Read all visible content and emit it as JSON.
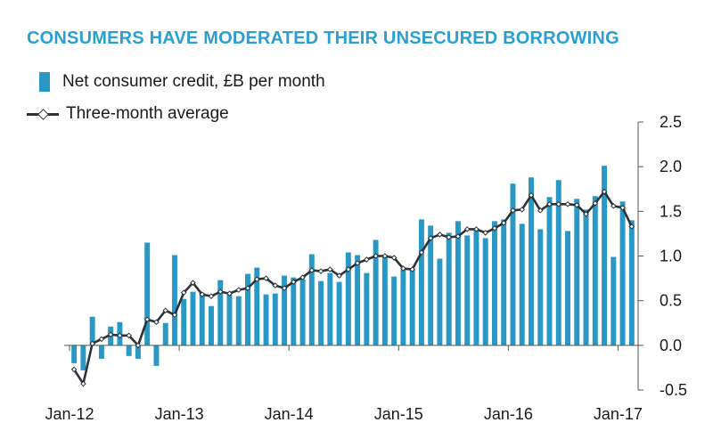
{
  "colors": {
    "title": "#2a9fd0",
    "bar": "#2a98c4",
    "line": "#2d3238",
    "axis": "#555555"
  },
  "chart_data": {
    "type": "bar",
    "title": "CONSUMERS HAVE MODERATED THEIR UNSECURED BORROWING",
    "ylim": [
      -0.5,
      2.5
    ],
    "yticks": [
      2.5,
      2.0,
      1.5,
      1.0,
      0.5,
      0.0,
      -0.5
    ],
    "ytick_labels": [
      "2.5",
      "2.0",
      "1.5",
      "1.0",
      "0.5",
      "0.0",
      "-0.5"
    ],
    "x_tick_labels": [
      {
        "label": "Jan-12",
        "index": 0
      },
      {
        "label": "Jan-13",
        "index": 12
      },
      {
        "label": "Jan-14",
        "index": 24
      },
      {
        "label": "Jan-15",
        "index": 36
      },
      {
        "label": "Jan-16",
        "index": 48
      },
      {
        "label": "Jan-17",
        "index": 60
      }
    ],
    "legend": [
      {
        "name": "Net consumer credit, £B per month",
        "kind": "bar"
      },
      {
        "name": "Three-month average",
        "kind": "line"
      }
    ],
    "series": [
      {
        "name": "Net consumer credit, £B per month",
        "kind": "bar",
        "values": [
          -0.2,
          -0.28,
          0.32,
          -0.15,
          0.21,
          0.26,
          -0.12,
          -0.15,
          1.15,
          -0.23,
          0.25,
          1.01,
          0.52,
          0.6,
          0.59,
          0.44,
          0.73,
          0.57,
          0.55,
          0.8,
          0.87,
          0.57,
          0.58,
          0.78,
          0.76,
          0.74,
          1.02,
          0.72,
          0.81,
          0.71,
          1.04,
          1.01,
          0.81,
          1.18,
          1.0,
          0.77,
          0.85,
          0.86,
          1.41,
          1.34,
          0.97,
          1.26,
          1.39,
          1.23,
          1.31,
          1.2,
          1.39,
          1.41,
          1.81,
          1.36,
          1.88,
          1.3,
          1.66,
          1.85,
          1.28,
          1.64,
          1.52,
          1.67,
          2.01,
          0.99,
          1.61,
          1.4
        ]
      },
      {
        "name": "Three-month average",
        "kind": "line",
        "values": [
          -0.27,
          -0.43,
          0.02,
          0.07,
          0.12,
          0.11,
          0.11,
          0.0,
          0.29,
          0.26,
          0.39,
          0.34,
          0.59,
          0.7,
          0.57,
          0.55,
          0.6,
          0.58,
          0.62,
          0.64,
          0.74,
          0.75,
          0.67,
          0.64,
          0.71,
          0.76,
          0.84,
          0.83,
          0.85,
          0.78,
          0.85,
          0.92,
          0.96,
          1.0,
          1.0,
          0.98,
          0.86,
          0.85,
          1.04,
          1.2,
          1.24,
          1.21,
          1.22,
          1.3,
          1.3,
          1.26,
          1.31,
          1.37,
          1.51,
          1.52,
          1.68,
          1.51,
          1.58,
          1.58,
          1.58,
          1.57,
          1.47,
          1.59,
          1.72,
          1.56,
          1.54,
          1.33
        ]
      }
    ]
  }
}
